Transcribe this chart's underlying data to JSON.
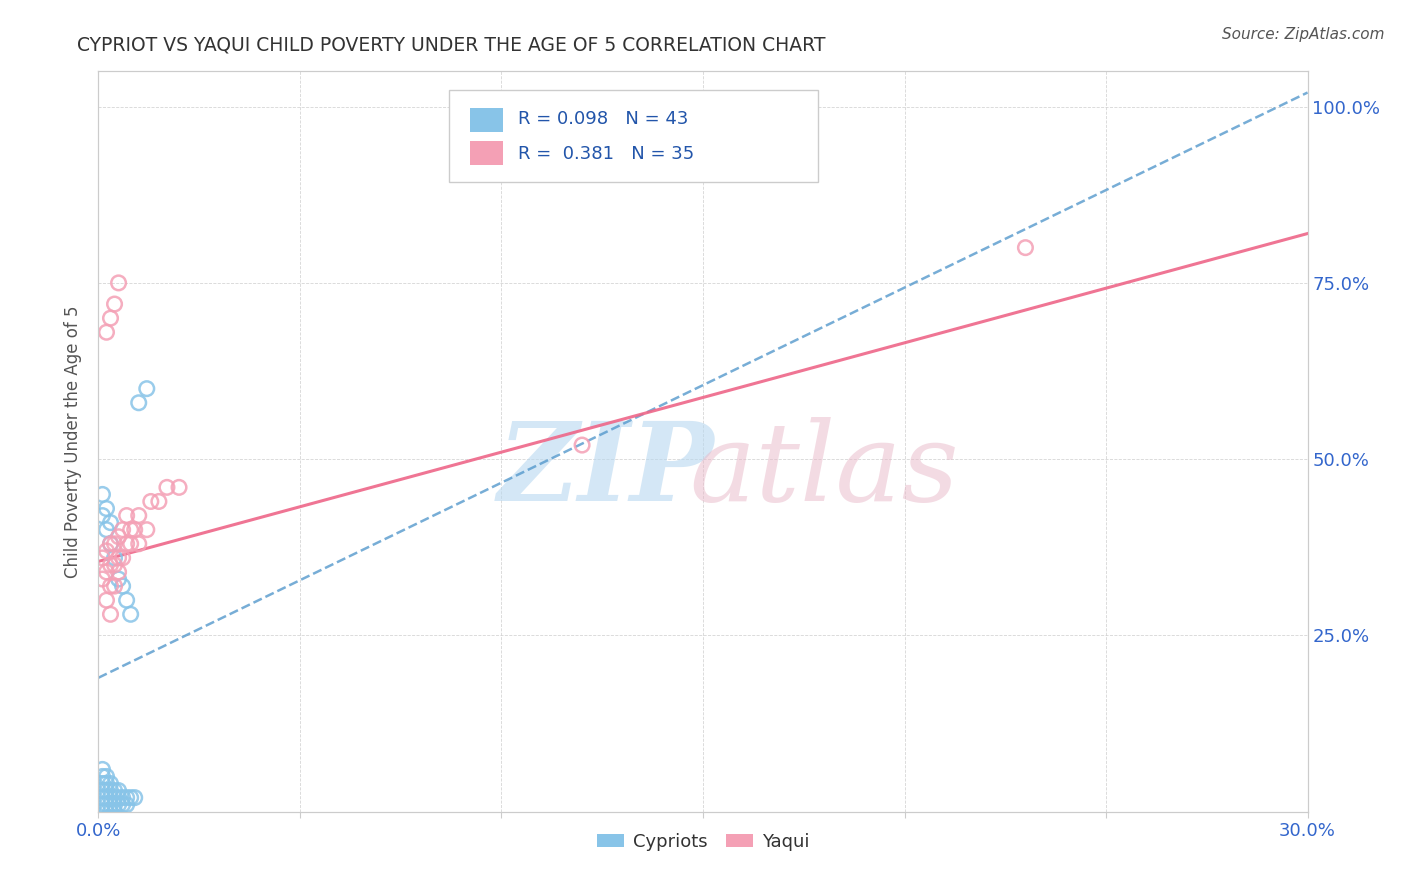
{
  "title": "CYPRIOT VS YAQUI CHILD POVERTY UNDER THE AGE OF 5 CORRELATION CHART",
  "source": "Source: ZipAtlas.com",
  "ylabel": "Child Poverty Under the Age of 5",
  "xmin": 0.0,
  "xmax": 0.3,
  "ymin": 0.0,
  "ymax": 1.05,
  "x_ticks": [
    0.0,
    0.05,
    0.1,
    0.15,
    0.2,
    0.25,
    0.3
  ],
  "x_tick_labels": [
    "0.0%",
    "",
    "",
    "",
    "",
    "",
    "30.0%"
  ],
  "y_ticks": [
    0.0,
    0.25,
    0.5,
    0.75,
    1.0
  ],
  "y_tick_labels": [
    "",
    "25.0%",
    "50.0%",
    "75.0%",
    "100.0%"
  ],
  "color_cypriot": "#88c4e8",
  "color_yaqui": "#f4a0b5",
  "color_cypriot_line": "#5599cc",
  "color_yaqui_line": "#ee6688",
  "cypriot_x": [
    0.001,
    0.001,
    0.001,
    0.001,
    0.001,
    0.001,
    0.001,
    0.002,
    0.002,
    0.002,
    0.002,
    0.002,
    0.002,
    0.003,
    0.003,
    0.003,
    0.003,
    0.003,
    0.004,
    0.004,
    0.004,
    0.004,
    0.005,
    0.005,
    0.005,
    0.006,
    0.006,
    0.007,
    0.007,
    0.008,
    0.009,
    0.001,
    0.001,
    0.002,
    0.002,
    0.003,
    0.003,
    0.004,
    0.005,
    0.006,
    0.007,
    0.008,
    0.01,
    0.012
  ],
  "cypriot_y": [
    0.0,
    0.01,
    0.02,
    0.03,
    0.04,
    0.05,
    0.06,
    0.0,
    0.01,
    0.02,
    0.03,
    0.04,
    0.05,
    0.0,
    0.01,
    0.02,
    0.03,
    0.04,
    0.0,
    0.01,
    0.02,
    0.03,
    0.01,
    0.02,
    0.03,
    0.01,
    0.02,
    0.01,
    0.02,
    0.02,
    0.02,
    0.42,
    0.45,
    0.4,
    0.43,
    0.38,
    0.41,
    0.36,
    0.33,
    0.32,
    0.3,
    0.28,
    0.58,
    0.6
  ],
  "yaqui_x": [
    0.001,
    0.001,
    0.002,
    0.002,
    0.002,
    0.003,
    0.003,
    0.003,
    0.003,
    0.004,
    0.004,
    0.004,
    0.005,
    0.005,
    0.005,
    0.006,
    0.006,
    0.007,
    0.007,
    0.008,
    0.008,
    0.009,
    0.01,
    0.01,
    0.012,
    0.013,
    0.015,
    0.017,
    0.02,
    0.12,
    0.23,
    0.002,
    0.003,
    0.004,
    0.005
  ],
  "yaqui_y": [
    0.33,
    0.36,
    0.3,
    0.34,
    0.37,
    0.28,
    0.32,
    0.35,
    0.38,
    0.32,
    0.35,
    0.38,
    0.34,
    0.36,
    0.39,
    0.36,
    0.4,
    0.38,
    0.42,
    0.38,
    0.4,
    0.4,
    0.38,
    0.42,
    0.4,
    0.44,
    0.44,
    0.46,
    0.46,
    0.52,
    0.8,
    0.68,
    0.7,
    0.72,
    0.75
  ],
  "cyp_line_x0": 0.0,
  "cyp_line_y0": 0.19,
  "cyp_line_x1": 0.3,
  "cyp_line_y1": 1.02,
  "yaq_line_x0": 0.0,
  "yaq_line_y0": 0.355,
  "yaq_line_x1": 0.3,
  "yaq_line_y1": 0.82
}
